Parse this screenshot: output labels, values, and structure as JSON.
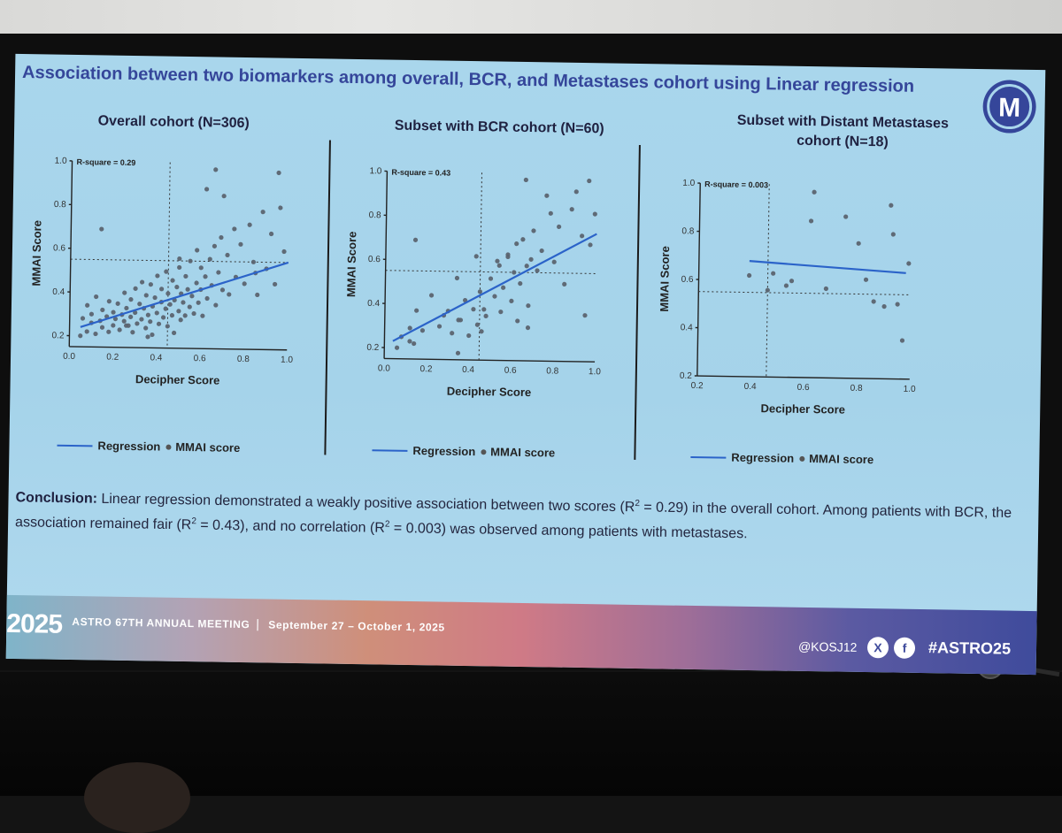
{
  "slide": {
    "title": "Association between two biomarkers among overall, BCR, and Metastases cohort using Linear regression",
    "logo_letter": "M",
    "brand_color": "#35469a"
  },
  "panels": [
    {
      "title_lines": [
        "Overall cohort (N=306)"
      ],
      "rsq": "R-square = 0.29",
      "xlabel": "Decipher Score",
      "ylabel": "MMAI Score",
      "xticks": [
        "0.0",
        "0.2",
        "0.4",
        "0.6",
        "0.8",
        "1.0"
      ],
      "yticks": [
        "0.2",
        "0.4",
        "0.6",
        "0.8",
        "1.0"
      ],
      "legend": {
        "regression": "Regression",
        "points": "MMAI score"
      }
    },
    {
      "title_lines": [
        "Subset with BCR cohort (N=60)"
      ],
      "rsq": "R-square = 0.43",
      "xlabel": "Decipher Score",
      "ylabel": "MMAI Score",
      "xticks": [
        "0.0",
        "0.2",
        "0.4",
        "0.6",
        "0.8",
        "1.0"
      ],
      "yticks": [
        "0.2",
        "0.4",
        "0.6",
        "0.8",
        "1.0"
      ],
      "legend": {
        "regression": "Regression",
        "points": "MMAI score"
      }
    },
    {
      "title_lines": [
        "Subset with Distant Metastases",
        "cohort (N=18)"
      ],
      "rsq": "R-square = 0.003",
      "xlabel": "Decipher Score",
      "ylabel": "MMAI Score",
      "xticks": [
        "0.2",
        "0.4",
        "0.6",
        "0.8",
        "1.0"
      ],
      "yticks": [
        "0.2",
        "0.4",
        "0.6",
        "0.8",
        "1.0"
      ],
      "legend": {
        "regression": "Regression",
        "points": "MMAI score"
      }
    }
  ],
  "conclusion": {
    "label": "Conclusion:",
    "p1": " Linear regression demonstrated a weakly positive association between two scores (R",
    "p2": " = 0.29) in the overall cohort. Among patients with BCR, the association remained fair (R",
    "p3": " = 0.43), and no correlation (R",
    "p4": " = 0.003) was observed among patients with metastases.",
    "sup": "2"
  },
  "banner": {
    "year": "2025",
    "meeting": "ASTRO 67TH ANNUAL MEETING",
    "separator": "|",
    "dates": "September 27 – October 1, 2025",
    "handle": "@KOSJ12",
    "x_glyph": "X",
    "f_glyph": "f",
    "hashtag": "#ASTRO25"
  },
  "chart_data": [
    {
      "type": "scatter",
      "title": "Overall cohort (N=306)",
      "xlabel": "Decipher Score",
      "ylabel": "MMAI Score",
      "xlim": [
        0.0,
        1.0
      ],
      "ylim": [
        0.15,
        1.0
      ],
      "r_square": 0.29,
      "regression": {
        "x": [
          0.05,
          1.0
        ],
        "y": [
          0.24,
          0.55
        ]
      },
      "ref_lines": {
        "x": 0.45,
        "y": 0.55
      },
      "points_note": "N=306; representative sample of estimated points",
      "x": [
        0.05,
        0.06,
        0.08,
        0.08,
        0.1,
        0.1,
        0.12,
        0.12,
        0.14,
        0.15,
        0.15,
        0.17,
        0.18,
        0.18,
        0.2,
        0.2,
        0.21,
        0.22,
        0.23,
        0.24,
        0.25,
        0.25,
        0.26,
        0.27,
        0.28,
        0.28,
        0.29,
        0.3,
        0.3,
        0.31,
        0.32,
        0.33,
        0.33,
        0.34,
        0.35,
        0.35,
        0.36,
        0.37,
        0.37,
        0.38,
        0.38,
        0.39,
        0.4,
        0.4,
        0.41,
        0.42,
        0.42,
        0.43,
        0.44,
        0.44,
        0.45,
        0.45,
        0.46,
        0.47,
        0.47,
        0.48,
        0.48,
        0.49,
        0.5,
        0.5,
        0.51,
        0.51,
        0.52,
        0.53,
        0.53,
        0.54,
        0.55,
        0.55,
        0.56,
        0.57,
        0.58,
        0.58,
        0.59,
        0.6,
        0.6,
        0.61,
        0.62,
        0.63,
        0.64,
        0.65,
        0.66,
        0.67,
        0.68,
        0.69,
        0.7,
        0.72,
        0.73,
        0.75,
        0.76,
        0.78,
        0.8,
        0.82,
        0.84,
        0.86,
        0.88,
        0.9,
        0.92,
        0.94,
        0.96,
        0.98,
        0.14,
        0.66,
        0.95,
        0.36,
        0.62,
        0.7,
        0.5,
        0.26,
        0.85
      ],
      "y": [
        0.2,
        0.28,
        0.22,
        0.34,
        0.26,
        0.3,
        0.21,
        0.38,
        0.27,
        0.24,
        0.32,
        0.29,
        0.22,
        0.36,
        0.25,
        0.31,
        0.28,
        0.35,
        0.23,
        0.3,
        0.27,
        0.4,
        0.33,
        0.25,
        0.29,
        0.37,
        0.22,
        0.31,
        0.42,
        0.26,
        0.35,
        0.28,
        0.45,
        0.33,
        0.24,
        0.39,
        0.3,
        0.27,
        0.44,
        0.34,
        0.21,
        0.38,
        0.31,
        0.48,
        0.26,
        0.36,
        0.42,
        0.29,
        0.33,
        0.5,
        0.25,
        0.4,
        0.35,
        0.3,
        0.46,
        0.37,
        0.22,
        0.43,
        0.32,
        0.52,
        0.28,
        0.4,
        0.36,
        0.3,
        0.48,
        0.42,
        0.34,
        0.55,
        0.39,
        0.31,
        0.45,
        0.6,
        0.36,
        0.42,
        0.52,
        0.3,
        0.48,
        0.38,
        0.56,
        0.44,
        0.62,
        0.35,
        0.5,
        0.66,
        0.42,
        0.58,
        0.4,
        0.7,
        0.48,
        0.63,
        0.45,
        0.72,
        0.55,
        0.4,
        0.78,
        0.52,
        0.68,
        0.45,
        0.8,
        0.6,
        0.69,
        0.97,
        0.96,
        0.2,
        0.88,
        0.85,
        0.56,
        0.25,
        0.5
      ]
    },
    {
      "type": "scatter",
      "title": "Subset with BCR cohort (N=60)",
      "xlabel": "Decipher Score",
      "ylabel": "MMAI Score",
      "xlim": [
        0.0,
        1.0
      ],
      "ylim": [
        0.15,
        1.0
      ],
      "r_square": 0.43,
      "regression": {
        "x": [
          0.04,
          1.0
        ],
        "y": [
          0.23,
          0.73
        ]
      },
      "ref_lines": {
        "x": 0.45,
        "y": 0.55
      },
      "x": [
        0.06,
        0.08,
        0.12,
        0.14,
        0.15,
        0.18,
        0.22,
        0.26,
        0.28,
        0.3,
        0.32,
        0.34,
        0.35,
        0.36,
        0.38,
        0.4,
        0.42,
        0.43,
        0.44,
        0.45,
        0.46,
        0.48,
        0.5,
        0.52,
        0.53,
        0.54,
        0.55,
        0.56,
        0.58,
        0.6,
        0.61,
        0.62,
        0.63,
        0.64,
        0.65,
        0.66,
        0.67,
        0.68,
        0.69,
        0.7,
        0.72,
        0.74,
        0.76,
        0.78,
        0.8,
        0.82,
        0.85,
        0.88,
        0.9,
        0.93,
        0.95,
        0.97,
        0.99,
        0.14,
        0.12,
        0.68,
        0.58,
        0.35,
        0.47,
        0.96
      ],
      "y": [
        0.2,
        0.25,
        0.29,
        0.22,
        0.37,
        0.28,
        0.44,
        0.3,
        0.35,
        0.37,
        0.27,
        0.52,
        0.18,
        0.33,
        0.42,
        0.26,
        0.38,
        0.62,
        0.31,
        0.46,
        0.28,
        0.35,
        0.52,
        0.44,
        0.6,
        0.58,
        0.37,
        0.48,
        0.63,
        0.42,
        0.55,
        0.68,
        0.33,
        0.5,
        0.7,
        0.97,
        0.58,
        0.4,
        0.61,
        0.74,
        0.56,
        0.65,
        0.9,
        0.82,
        0.6,
        0.76,
        0.5,
        0.84,
        0.92,
        0.72,
        0.36,
        0.68,
        0.82,
        0.69,
        0.23,
        0.3,
        0.62,
        0.33,
        0.38,
        0.97
      ]
    },
    {
      "type": "scatter",
      "title": "Subset with Distant Metastases cohort (N=18)",
      "xlabel": "Decipher Score",
      "ylabel": "MMAI Score",
      "xlim": [
        0.2,
        1.0
      ],
      "ylim": [
        0.2,
        1.0
      ],
      "r_square": 0.003,
      "regression": {
        "x": [
          0.39,
          0.98
        ],
        "y": [
          0.68,
          0.64
        ]
      },
      "ref_lines": {
        "x": 0.46,
        "y": 0.55
      },
      "x": [
        0.39,
        0.46,
        0.48,
        0.53,
        0.55,
        0.62,
        0.63,
        0.68,
        0.75,
        0.8,
        0.83,
        0.86,
        0.9,
        0.92,
        0.93,
        0.95,
        0.97,
        0.99
      ],
      "y": [
        0.62,
        0.56,
        0.63,
        0.58,
        0.6,
        0.85,
        0.97,
        0.57,
        0.87,
        0.76,
        0.61,
        0.52,
        0.5,
        0.92,
        0.8,
        0.51,
        0.36,
        0.68
      ]
    }
  ]
}
